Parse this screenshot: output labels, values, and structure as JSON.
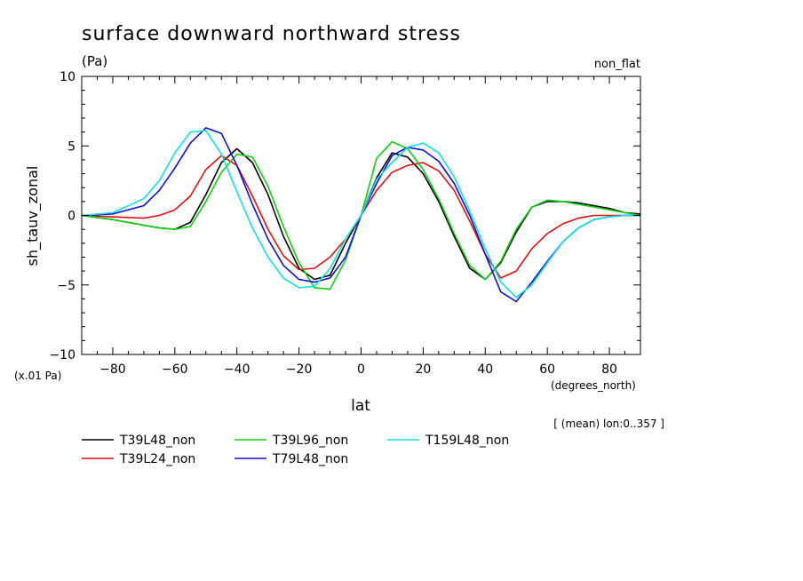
{
  "chart_data": {
    "type": "line",
    "title": "surface downward northward stress",
    "units_label": "(Pa)",
    "experiment_label": "non_flat",
    "ylabel": "sh_tauv_zonal",
    "yscale_label": "(x.01 Pa)",
    "xlabel": "lat",
    "xunits_label": "(degrees_north)",
    "subset_label": "[ (mean) lon:0..357 ]",
    "xlim": [
      -90,
      90
    ],
    "ylim": [
      -10,
      10
    ],
    "x_ticks": [
      -80,
      -60,
      -40,
      -20,
      0,
      20,
      40,
      60,
      80
    ],
    "y_ticks": [
      -10,
      -5,
      0,
      5,
      10
    ],
    "x_tick_labels": [
      "−80",
      "−60",
      "−40",
      "−20",
      "0",
      "20",
      "40",
      "60",
      "80"
    ],
    "y_tick_labels": [
      "−10",
      "−5",
      "0",
      "5",
      "10"
    ],
    "legend_position": "bottom",
    "series": [
      {
        "name": "T39L48_non",
        "color": "#000000",
        "x": [
          -90,
          -80,
          -70,
          -65,
          -60,
          -55,
          -50,
          -45,
          -40,
          -35,
          -30,
          -25,
          -20,
          -15,
          -10,
          -5,
          0,
          5,
          10,
          15,
          20,
          25,
          30,
          35,
          40,
          45,
          50,
          55,
          60,
          65,
          70,
          75,
          80,
          85,
          90
        ],
        "y": [
          0,
          -0.3,
          -0.7,
          -0.9,
          -1.0,
          -0.5,
          1.5,
          3.8,
          4.8,
          3.8,
          1.5,
          -1.5,
          -3.8,
          -4.6,
          -4.3,
          -2.0,
          0,
          2.7,
          4.5,
          4.2,
          3.0,
          1.0,
          -1.5,
          -3.8,
          -4.6,
          -3.4,
          -1.2,
          0.6,
          1.0,
          1.0,
          0.9,
          0.7,
          0.5,
          0.2,
          0.1
        ]
      },
      {
        "name": "T39L24_non",
        "color": "#e01010",
        "x": [
          -90,
          -80,
          -70,
          -65,
          -60,
          -55,
          -50,
          -45,
          -40,
          -35,
          -30,
          -25,
          -20,
          -15,
          -10,
          -5,
          0,
          5,
          10,
          15,
          20,
          25,
          30,
          35,
          40,
          45,
          50,
          55,
          60,
          65,
          70,
          75,
          80,
          85,
          90
        ],
        "y": [
          0,
          -0.1,
          -0.2,
          0,
          0.4,
          1.4,
          3.3,
          4.3,
          3.6,
          1.4,
          -1.0,
          -2.9,
          -3.9,
          -3.8,
          -3.0,
          -1.7,
          0,
          1.8,
          3.1,
          3.6,
          3.8,
          3.2,
          1.8,
          -0.4,
          -2.8,
          -4.5,
          -4.0,
          -2.4,
          -1.3,
          -0.6,
          -0.2,
          0,
          0,
          0,
          0
        ]
      },
      {
        "name": "T39L96_non",
        "color": "#10d010",
        "x": [
          -90,
          -80,
          -70,
          -65,
          -60,
          -55,
          -50,
          -45,
          -40,
          -35,
          -30,
          -25,
          -20,
          -15,
          -10,
          -5,
          0,
          5,
          10,
          15,
          20,
          25,
          30,
          35,
          40,
          45,
          50,
          55,
          60,
          65,
          70,
          75,
          80,
          85,
          90
        ],
        "y": [
          0,
          -0.3,
          -0.7,
          -0.9,
          -1.0,
          -0.8,
          1.0,
          3.1,
          4.4,
          4.2,
          2.1,
          -0.8,
          -3.4,
          -5.2,
          -5.3,
          -3.2,
          0,
          4.1,
          5.3,
          4.8,
          3.3,
          1.2,
          -1.3,
          -3.6,
          -4.6,
          -3.3,
          -1.0,
          0.6,
          1.1,
          1.0,
          0.8,
          0.6,
          0.4,
          0.2,
          0
        ]
      },
      {
        "name": "T79L48_non",
        "color": "#1010d0",
        "x": [
          -90,
          -80,
          -70,
          -65,
          -60,
          -55,
          -50,
          -45,
          -40,
          -35,
          -30,
          -25,
          -20,
          -15,
          -10,
          -5,
          0,
          5,
          10,
          15,
          20,
          25,
          30,
          35,
          40,
          45,
          50,
          55,
          60,
          65,
          70,
          75,
          80,
          85,
          90
        ],
        "y": [
          0,
          0.1,
          0.7,
          1.8,
          3.4,
          5.2,
          6.3,
          5.9,
          3.6,
          0.8,
          -1.7,
          -3.6,
          -4.6,
          -4.8,
          -4.5,
          -3.0,
          0,
          2.3,
          4.3,
          4.9,
          4.7,
          3.9,
          2.3,
          0,
          -2.8,
          -5.5,
          -6.2,
          -4.8,
          -3.3,
          -1.9,
          -0.9,
          -0.3,
          -0.1,
          0,
          0
        ]
      },
      {
        "name": "T159L48_non",
        "color": "#10e0e0",
        "x": [
          -90,
          -80,
          -70,
          -65,
          -60,
          -55,
          -50,
          -45,
          -40,
          -35,
          -30,
          -25,
          -20,
          -15,
          -10,
          -5,
          0,
          5,
          10,
          15,
          20,
          25,
          30,
          35,
          40,
          45,
          50,
          55,
          60,
          65,
          70,
          75,
          80,
          85,
          90
        ],
        "y": [
          0,
          0.2,
          1.2,
          2.5,
          4.5,
          6.0,
          6.1,
          4.4,
          1.7,
          -0.9,
          -3.0,
          -4.5,
          -5.2,
          -5.1,
          -3.8,
          -1.7,
          0,
          2.6,
          3.8,
          4.9,
          5.2,
          4.5,
          2.8,
          0.3,
          -2.4,
          -4.8,
          -5.9,
          -5.0,
          -3.4,
          -1.9,
          -0.9,
          -0.3,
          -0.1,
          0,
          0
        ]
      }
    ]
  }
}
